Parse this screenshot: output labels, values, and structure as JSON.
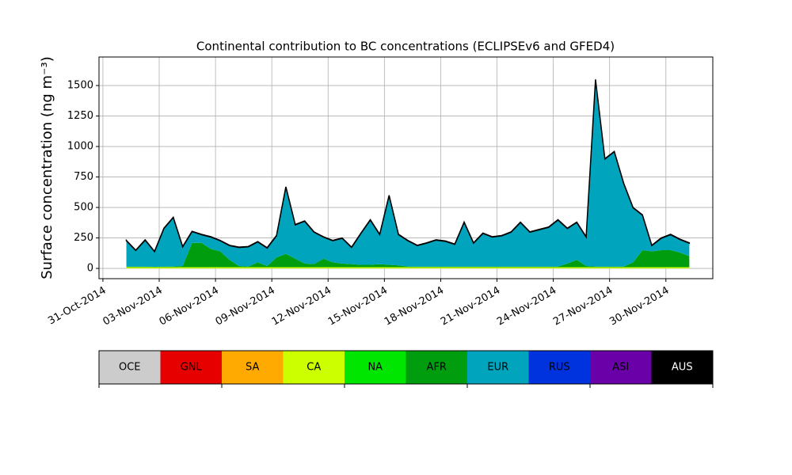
{
  "chart_data": {
    "type": "stacked_area",
    "title": "Continental contribution to BC concentrations (ECLIPSEv6 and GFED4)",
    "y_label": "Surface concentration (ng m⁻³)",
    "x": [
      "2014-11-01T06:00",
      "2014-11-01T18:00",
      "2014-11-02T06:00",
      "2014-11-02T18:00",
      "2014-11-03T06:00",
      "2014-11-03T18:00",
      "2014-11-04T06:00",
      "2014-11-04T18:00",
      "2014-11-05T06:00",
      "2014-11-05T18:00",
      "2014-11-06T06:00",
      "2014-11-06T18:00",
      "2014-11-07T06:00",
      "2014-11-07T18:00",
      "2014-11-08T06:00",
      "2014-11-08T18:00",
      "2014-11-09T06:00",
      "2014-11-09T18:00",
      "2014-11-10T06:00",
      "2014-11-10T18:00",
      "2014-11-11T06:00",
      "2014-11-11T18:00",
      "2014-11-12T06:00",
      "2014-11-12T18:00",
      "2014-11-13T06:00",
      "2014-11-13T18:00",
      "2014-11-14T06:00",
      "2014-11-14T18:00",
      "2014-11-15T06:00",
      "2014-11-15T18:00",
      "2014-11-16T06:00",
      "2014-11-16T18:00",
      "2014-11-17T06:00",
      "2014-11-17T18:00",
      "2014-11-18T06:00",
      "2014-11-18T18:00",
      "2014-11-19T06:00",
      "2014-11-19T18:00",
      "2014-11-20T06:00",
      "2014-11-20T18:00",
      "2014-11-21T06:00",
      "2014-11-21T18:00",
      "2014-11-22T06:00",
      "2014-11-22T18:00",
      "2014-11-23T06:00",
      "2014-11-23T18:00",
      "2014-11-24T06:00",
      "2014-11-24T18:00",
      "2014-11-25T06:00",
      "2014-11-25T18:00",
      "2014-11-26T06:00",
      "2014-11-26T18:00",
      "2014-11-27T06:00",
      "2014-11-27T18:00",
      "2014-11-28T06:00",
      "2014-11-28T18:00",
      "2014-11-29T06:00",
      "2014-11-29T18:00",
      "2014-11-30T06:00",
      "2014-11-30T18:00",
      "2014-12-01T06:00"
    ],
    "series": [
      {
        "name": "OCE",
        "color": "#cccccc",
        "values": [
          0,
          0,
          0,
          0,
          0,
          0,
          0,
          0,
          0,
          0,
          0,
          0,
          0,
          0,
          0,
          0,
          0,
          0,
          0,
          0,
          0,
          0,
          0,
          0,
          0,
          0,
          0,
          0,
          0,
          0,
          0,
          0,
          0,
          0,
          0,
          0,
          0,
          0,
          0,
          0,
          0,
          0,
          0,
          0,
          0,
          0,
          0,
          0,
          0,
          0,
          0,
          0,
          0,
          0,
          0,
          0,
          0,
          0,
          0,
          0,
          0
        ]
      },
      {
        "name": "GNL",
        "color": "#e60000",
        "values": [
          0,
          0,
          0,
          0,
          0,
          0,
          0,
          0,
          0,
          0,
          0,
          0,
          0,
          0,
          0,
          0,
          0,
          0,
          0,
          0,
          0,
          0,
          0,
          0,
          0,
          0,
          0,
          0,
          0,
          0,
          0,
          0,
          0,
          0,
          0,
          0,
          0,
          0,
          0,
          0,
          0,
          0,
          0,
          0,
          0,
          0,
          0,
          0,
          0,
          0,
          0,
          0,
          0,
          0,
          0,
          0,
          0,
          0,
          0,
          0,
          0
        ]
      },
      {
        "name": "SA",
        "color": "#ffaa00",
        "values": [
          0,
          0,
          0,
          0,
          0,
          0,
          0,
          0,
          0,
          0,
          0,
          0,
          0,
          0,
          0,
          0,
          0,
          0,
          0,
          0,
          0,
          0,
          0,
          0,
          0,
          0,
          0,
          0,
          0,
          0,
          0,
          0,
          0,
          0,
          0,
          0,
          0,
          0,
          0,
          0,
          0,
          0,
          0,
          0,
          0,
          0,
          0,
          0,
          0,
          0,
          0,
          0,
          0,
          0,
          0,
          0,
          0,
          0,
          0,
          0,
          0
        ]
      },
      {
        "name": "CA",
        "color": "#ccff00",
        "values": [
          10,
          10,
          10,
          10,
          10,
          10,
          10,
          10,
          10,
          10,
          10,
          10,
          10,
          10,
          10,
          10,
          10,
          10,
          10,
          10,
          10,
          10,
          10,
          10,
          10,
          10,
          10,
          10,
          10,
          10,
          10,
          10,
          10,
          10,
          10,
          10,
          10,
          10,
          10,
          10,
          10,
          10,
          10,
          10,
          10,
          10,
          10,
          10,
          10,
          10,
          10,
          10,
          10,
          10,
          10,
          10,
          10,
          10,
          10,
          10,
          10
        ]
      },
      {
        "name": "NA",
        "color": "#00e600",
        "values": [
          0,
          0,
          0,
          0,
          0,
          0,
          0,
          0,
          0,
          0,
          0,
          0,
          0,
          0,
          0,
          0,
          0,
          0,
          0,
          0,
          0,
          0,
          0,
          0,
          0,
          0,
          0,
          0,
          0,
          0,
          0,
          0,
          0,
          0,
          0,
          0,
          0,
          0,
          0,
          0,
          0,
          0,
          0,
          0,
          0,
          0,
          0,
          0,
          0,
          0,
          0,
          0,
          0,
          0,
          0,
          0,
          0,
          0,
          0,
          0,
          0
        ]
      },
      {
        "name": "AFR",
        "color": "#009e0f",
        "values": [
          5,
          5,
          5,
          3,
          5,
          5,
          10,
          200,
          200,
          150,
          130,
          60,
          10,
          5,
          40,
          10,
          80,
          110,
          70,
          30,
          25,
          70,
          40,
          30,
          25,
          20,
          20,
          25,
          20,
          15,
          5,
          5,
          5,
          5,
          5,
          5,
          5,
          5,
          5,
          5,
          5,
          5,
          5,
          5,
          5,
          5,
          5,
          30,
          60,
          10,
          5,
          5,
          5,
          5,
          40,
          140,
          130,
          140,
          140,
          120,
          90
        ]
      },
      {
        "name": "EUR",
        "color": "#00a5bd",
        "values": [
          209,
          129,
          214,
          121,
          309,
          399,
          154,
          89,
          64,
          94,
          84,
          114,
          149,
          159,
          164,
          144,
          174,
          544,
          274,
          344,
          259,
          174,
          174,
          204,
          134,
          254,
          364,
          239,
          564,
          249,
          209,
          169,
          189,
          214,
          204,
          179,
          359,
          189,
          269,
          239,
          249,
          279,
          359,
          279,
          299,
          319,
          379,
          284,
          304,
          234,
          1529,
          879,
          939,
          679,
          444,
          284,
          44,
          94,
          124,
          104,
          104
        ]
      },
      {
        "name": "RUS",
        "color": "#0033dd",
        "values": [
          0,
          0,
          0,
          0,
          0,
          0,
          0,
          0,
          0,
          0,
          0,
          0,
          0,
          0,
          0,
          0,
          0,
          0,
          0,
          0,
          0,
          0,
          0,
          0,
          0,
          0,
          0,
          0,
          0,
          0,
          0,
          0,
          0,
          0,
          0,
          0,
          0,
          0,
          0,
          0,
          0,
          0,
          0,
          0,
          0,
          0,
          0,
          0,
          0,
          0,
          0,
          0,
          0,
          0,
          0,
          0,
          0,
          0,
          0,
          0,
          0
        ]
      },
      {
        "name": "ASI",
        "color": "#6a00a8",
        "values": [
          3,
          3,
          3,
          3,
          3,
          3,
          3,
          3,
          3,
          3,
          3,
          3,
          3,
          3,
          3,
          3,
          3,
          3,
          3,
          3,
          3,
          3,
          3,
          3,
          3,
          3,
          3,
          3,
          3,
          3,
          3,
          3,
          3,
          3,
          3,
          3,
          3,
          3,
          3,
          3,
          3,
          3,
          3,
          3,
          3,
          3,
          3,
          3,
          3,
          3,
          3,
          3,
          3,
          3,
          3,
          3,
          3,
          3,
          3,
          3,
          3
        ]
      },
      {
        "name": "AUS",
        "color": "#000000",
        "values": [
          3,
          3,
          3,
          3,
          3,
          3,
          3,
          3,
          3,
          3,
          3,
          3,
          3,
          3,
          3,
          3,
          3,
          3,
          3,
          3,
          3,
          3,
          3,
          3,
          3,
          3,
          3,
          3,
          3,
          3,
          3,
          3,
          3,
          3,
          3,
          3,
          3,
          3,
          3,
          3,
          3,
          3,
          3,
          3,
          3,
          3,
          3,
          3,
          3,
          3,
          3,
          3,
          3,
          3,
          3,
          3,
          3,
          3,
          3,
          3,
          3
        ]
      }
    ],
    "xlim": [
      "2014-10-30T19:00",
      "2014-12-02T12:00"
    ],
    "xticks": [
      {
        "value": "2014-10-31T00:00",
        "label": "31-Oct-2014"
      },
      {
        "value": "2014-11-03T00:00",
        "label": "03-Nov-2014"
      },
      {
        "value": "2014-11-06T00:00",
        "label": "06-Nov-2014"
      },
      {
        "value": "2014-11-09T00:00",
        "label": "09-Nov-2014"
      },
      {
        "value": "2014-11-12T00:00",
        "label": "12-Nov-2014"
      },
      {
        "value": "2014-11-15T00:00",
        "label": "15-Nov-2014"
      },
      {
        "value": "2014-11-18T00:00",
        "label": "18-Nov-2014"
      },
      {
        "value": "2014-11-21T00:00",
        "label": "21-Nov-2014"
      },
      {
        "value": "2014-11-24T00:00",
        "label": "24-Nov-2014"
      },
      {
        "value": "2014-11-27T00:00",
        "label": "27-Nov-2014"
      },
      {
        "value": "2014-11-30T00:00",
        "label": "30-Nov-2014"
      }
    ],
    "ylim": [
      -84,
      1734
    ],
    "yticks": [
      0,
      250,
      500,
      750,
      1000,
      1250,
      1500
    ],
    "grid": true
  }
}
